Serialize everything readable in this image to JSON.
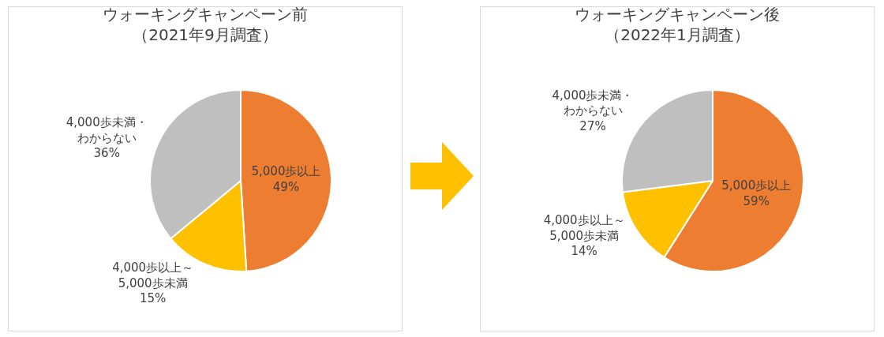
{
  "chart_data": [
    {
      "type": "pie",
      "title": "ウォーキングキャンペーン前（2021年9月調査）",
      "categories": [
        "5,000歩以上",
        "4,000歩以上～5,000歩未満",
        "4,000歩未満・わからない"
      ],
      "values": [
        49,
        15,
        36
      ],
      "value_labels": [
        "49%",
        "15%",
        "36%"
      ],
      "colors": [
        "#ed7d31",
        "#ffc000",
        "#bfbfbf"
      ]
    },
    {
      "type": "pie",
      "title": "ウォーキングキャンペーン後（2022年1月調査）",
      "categories": [
        "5,000歩以上",
        "4,000歩以上～5,000歩未満",
        "4,000歩未満・わからない"
      ],
      "values": [
        59,
        14,
        27
      ],
      "value_labels": [
        "59%",
        "14%",
        "27%"
      ],
      "colors": [
        "#ed7d31",
        "#ffc000",
        "#bfbfbf"
      ]
    }
  ]
}
